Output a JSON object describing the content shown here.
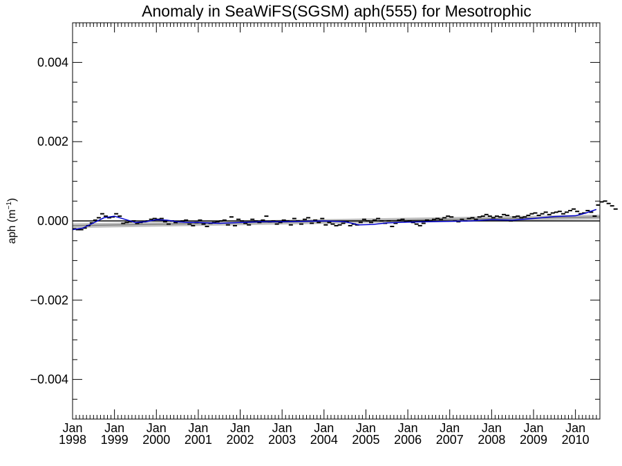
{
  "chart_data": {
    "type": "line",
    "title": "Anomaly in SeaWiFS(SGSM) aph(555) for Mesotrophic",
    "xlabel": "",
    "ylabel": "aph (m",
    "ylabel_sup": "−1",
    "ylabel_close": ")",
    "xlim": [
      "1998-01",
      "2010-07"
    ],
    "ylim": [
      -0.005,
      0.005
    ],
    "y_ticks": [
      {
        "value": -0.004,
        "label": "−0.004"
      },
      {
        "value": -0.002,
        "label": "−0.002"
      },
      {
        "value": 0.0,
        "label": "0.000"
      },
      {
        "value": 0.002,
        "label": "0.002"
      },
      {
        "value": 0.004,
        "label": "0.004"
      }
    ],
    "y_minor_step": 0.0005,
    "x_ticks": [
      {
        "date": "1998-01",
        "month": "Jan",
        "year": "1998"
      },
      {
        "date": "1999-01",
        "month": "Jan",
        "year": "1999"
      },
      {
        "date": "2000-01",
        "month": "Jan",
        "year": "2000"
      },
      {
        "date": "2001-01",
        "month": "Jan",
        "year": "2001"
      },
      {
        "date": "2002-01",
        "month": "Jan",
        "year": "2002"
      },
      {
        "date": "2003-01",
        "month": "Jan",
        "year": "2003"
      },
      {
        "date": "2004-01",
        "month": "Jan",
        "year": "2004"
      },
      {
        "date": "2005-01",
        "month": "Jan",
        "year": "2005"
      },
      {
        "date": "2006-01",
        "month": "Jan",
        "year": "2006"
      },
      {
        "date": "2007-01",
        "month": "Jan",
        "year": "2007"
      },
      {
        "date": "2008-01",
        "month": "Jan",
        "year": "2008"
      },
      {
        "date": "2009-01",
        "month": "Jan",
        "year": "2009"
      },
      {
        "date": "2010-01",
        "month": "Jan",
        "year": "2010"
      }
    ],
    "monthly_anomaly": [
      -0.0002,
      -0.00022,
      -0.00022,
      -0.00018,
      -0.00012,
      -5e-05,
      2e-05,
      8e-05,
      0.00018,
      0.00012,
      8e-05,
      0.0001,
      0.00018,
      0.00012,
      -6e-05,
      -4e-05,
      -2e-05,
      0.0,
      -6e-05,
      -4e-05,
      -2e-05,
      0.0,
      4e-05,
      6e-05,
      4e-05,
      6e-05,
      -2e-05,
      -8e-05,
      0.0,
      -4e-05,
      -2e-05,
      0.0,
      2e-05,
      -8e-05,
      -0.00012,
      -4e-05,
      2e-05,
      -8e-05,
      -0.00014,
      -6e-05,
      -4e-05,
      -2e-05,
      0.0,
      2e-05,
      -0.0001,
      0.0001,
      -0.00012,
      4e-05,
      0.0,
      -6e-05,
      -0.0001,
      4e-05,
      0.0,
      -4e-05,
      2e-05,
      0.00012,
      -2e-05,
      0.0,
      -8e-05,
      -4e-05,
      2e-05,
      0.0,
      -0.0001,
      6e-05,
      0.0,
      -8e-05,
      4e-05,
      8e-05,
      -6e-05,
      2e-05,
      -4e-05,
      6e-05,
      -0.0001,
      -4e-05,
      -8e-05,
      -0.00012,
      -0.0001,
      -6e-05,
      -2e-05,
      -0.00012,
      -8e-05,
      -0.0001,
      -4e-05,
      4e-05,
      0.0,
      -4e-05,
      2e-05,
      6e-05,
      0.0,
      -6e-05,
      0.0,
      -0.00014,
      -6e-05,
      2e-05,
      4e-05,
      -2e-05,
      0.0,
      -4e-05,
      -8e-05,
      -0.00012,
      -6e-05,
      2e-05,
      0.0,
      4e-05,
      6e-05,
      4e-05,
      8e-05,
      0.00012,
      0.0001,
      0.0,
      -2e-05,
      4e-05,
      0.0,
      6e-05,
      8e-05,
      4e-05,
      0.0001,
      0.00012,
      0.00016,
      0.00012,
      8e-05,
      0.00012,
      0.0001,
      0.00016,
      0.00014,
      0.0,
      0.0001,
      0.00012,
      8e-05,
      0.0001,
      0.00014,
      0.00018,
      0.0002,
      0.00014,
      0.00018,
      0.00022,
      0.00016,
      0.0002,
      0.00022,
      0.00024,
      0.00018,
      0.00022,
      0.00026,
      0.0003,
      0.00024,
      0.00018,
      0.0002,
      0.00026,
      0.00022,
      0.00012,
      0.0004,
      0.00048,
      0.0005,
      0.00044,
      0.00038,
      0.0003
    ],
    "smoothed": [
      {
        "date": "1998-01",
        "value": -0.00022
      },
      {
        "date": "1998-04",
        "value": -0.00018
      },
      {
        "date": "1998-07",
        "value": -5e-05
      },
      {
        "date": "1998-10",
        "value": 8e-05
      },
      {
        "date": "1999-01",
        "value": 0.00012
      },
      {
        "date": "1999-04",
        "value": 4e-05
      },
      {
        "date": "1999-07",
        "value": -4e-05
      },
      {
        "date": "1999-10",
        "value": -2e-05
      },
      {
        "date": "2000-01",
        "value": 3e-05
      },
      {
        "date": "2000-04",
        "value": 2e-05
      },
      {
        "date": "2000-07",
        "value": -2e-05
      },
      {
        "date": "2000-10",
        "value": -4e-05
      },
      {
        "date": "2001-01",
        "value": -4e-05
      },
      {
        "date": "2001-07",
        "value": -6e-05
      },
      {
        "date": "2002-01",
        "value": -4e-05
      },
      {
        "date": "2002-07",
        "value": -2e-05
      },
      {
        "date": "2003-01",
        "value": -2e-05
      },
      {
        "date": "2003-07",
        "value": -1e-05
      },
      {
        "date": "2004-01",
        "value": 0.0
      },
      {
        "date": "2004-07",
        "value": -2e-05
      },
      {
        "date": "2004-11",
        "value": -0.0001
      },
      {
        "date": "2005-03",
        "value": -9e-05
      },
      {
        "date": "2005-07",
        "value": -5e-05
      },
      {
        "date": "2006-01",
        "value": -3e-05
      },
      {
        "date": "2006-07",
        "value": -2e-05
      },
      {
        "date": "2007-01",
        "value": -1e-05
      },
      {
        "date": "2007-07",
        "value": 0.0
      },
      {
        "date": "2008-01",
        "value": 3e-05
      },
      {
        "date": "2008-07",
        "value": 2e-05
      },
      {
        "date": "2009-01",
        "value": 6e-05
      },
      {
        "date": "2009-07",
        "value": 0.00011
      },
      {
        "date": "2010-01",
        "value": 0.00013
      },
      {
        "date": "2010-04",
        "value": 0.0002
      },
      {
        "date": "2010-07",
        "value": 0.00029
      }
    ],
    "trend": {
      "start": {
        "date": "1998-01",
        "value": -0.00012
      },
      "end": {
        "date": "2010-07",
        "value": 0.0001
      }
    },
    "confidence_band_halfwidth": 6e-05,
    "zero_line": 0.0,
    "colors": {
      "smoothed": "#0000cc",
      "band": "#c0c0c0",
      "trend": "#808080",
      "markers": "#000000",
      "axes": "#000000"
    },
    "grid": false,
    "legend": "none"
  }
}
